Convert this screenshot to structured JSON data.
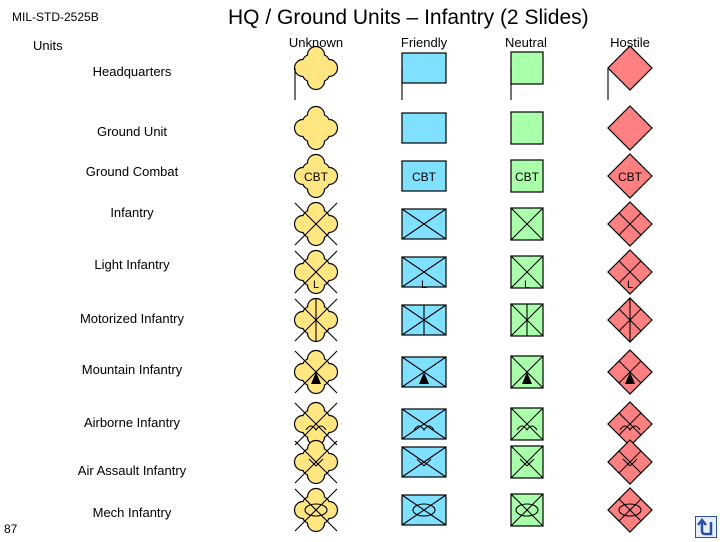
{
  "header": {
    "standard": "MIL-STD-2525B",
    "title": "HQ / Ground Units – Infantry (2 Slides)",
    "units_label": "Units"
  },
  "columns": [
    "Unknown",
    "Friendly",
    "Neutral",
    "Hostile"
  ],
  "colors": {
    "unknown": "#ffe680",
    "friendly": "#80e0ff",
    "neutral": "#aaffaa",
    "hostile": "#ff8080",
    "nav": "#2a4fa0"
  },
  "rows": [
    {
      "label": "Headquarters",
      "symbol": "headquarters"
    },
    {
      "label": "Ground Unit",
      "symbol": "ground-unit"
    },
    {
      "label": "Ground Combat",
      "symbol": "ground-combat",
      "text": "CBT"
    },
    {
      "label": "Infantry",
      "symbol": "infantry"
    },
    {
      "label": "Light Infantry",
      "symbol": "light-infantry",
      "text": "L"
    },
    {
      "label": "Motorized Infantry",
      "symbol": "motorized-infantry"
    },
    {
      "label": "Mountain Infantry",
      "symbol": "mountain-infantry"
    },
    {
      "label": "Airborne Infantry",
      "symbol": "airborne-infantry"
    },
    {
      "label": "Air Assault Infantry",
      "symbol": "air-assault-infantry"
    },
    {
      "label": "Mech Infantry",
      "symbol": "mech-infantry"
    }
  ],
  "page_number": "87",
  "nav_icon": "return-arrow-icon"
}
